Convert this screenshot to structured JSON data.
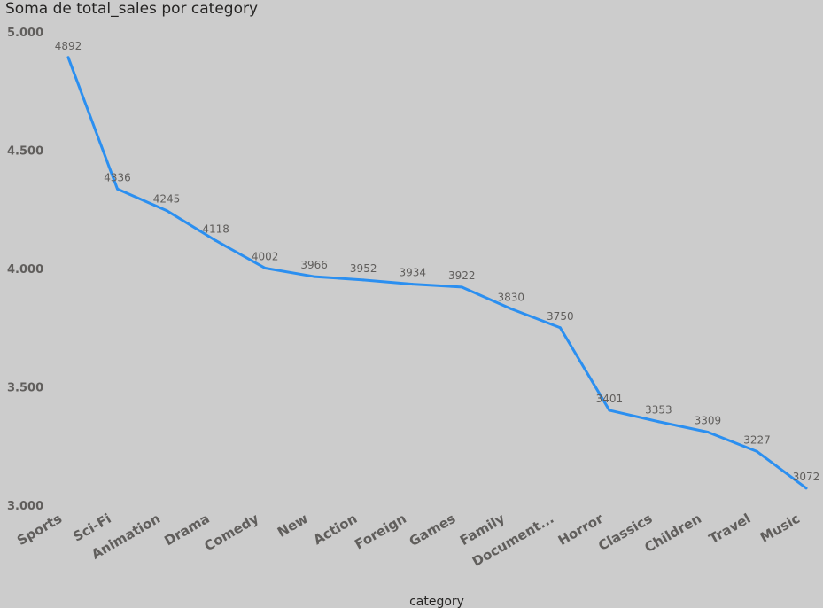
{
  "chart_data": {
    "type": "line",
    "title": "Soma de total_sales por category",
    "xlabel": "category",
    "ylabel": "",
    "categories": [
      "Sports",
      "Sci-Fi",
      "Animation",
      "Drama",
      "Comedy",
      "New",
      "Action",
      "Foreign",
      "Games",
      "Family",
      "Document...",
      "Horror",
      "Classics",
      "Children",
      "Travel",
      "Music"
    ],
    "series": [
      {
        "values": [
          4892,
          4336,
          4245,
          4118,
          4002,
          3966,
          3952,
          3934,
          3922,
          3830,
          3750,
          3401,
          3353,
          3309,
          3227,
          3072
        ]
      }
    ],
    "data_labels": [
      "4892",
      "4336",
      "4245",
      "4118",
      "4002",
      "3966",
      "3952",
      "3934",
      "3922",
      "3830",
      "3750",
      "3401",
      "3353",
      "3309",
      "3227",
      "3072"
    ],
    "ylim": [
      3000,
      5000
    ],
    "yticks": [
      3000,
      3500,
      4000,
      4500,
      5000
    ],
    "ytick_labels": [
      "3.000",
      "3.500",
      "4.000",
      "4.500",
      "5.000"
    ],
    "grid": false,
    "legend": "none",
    "line_color": "#2b8ff0"
  }
}
